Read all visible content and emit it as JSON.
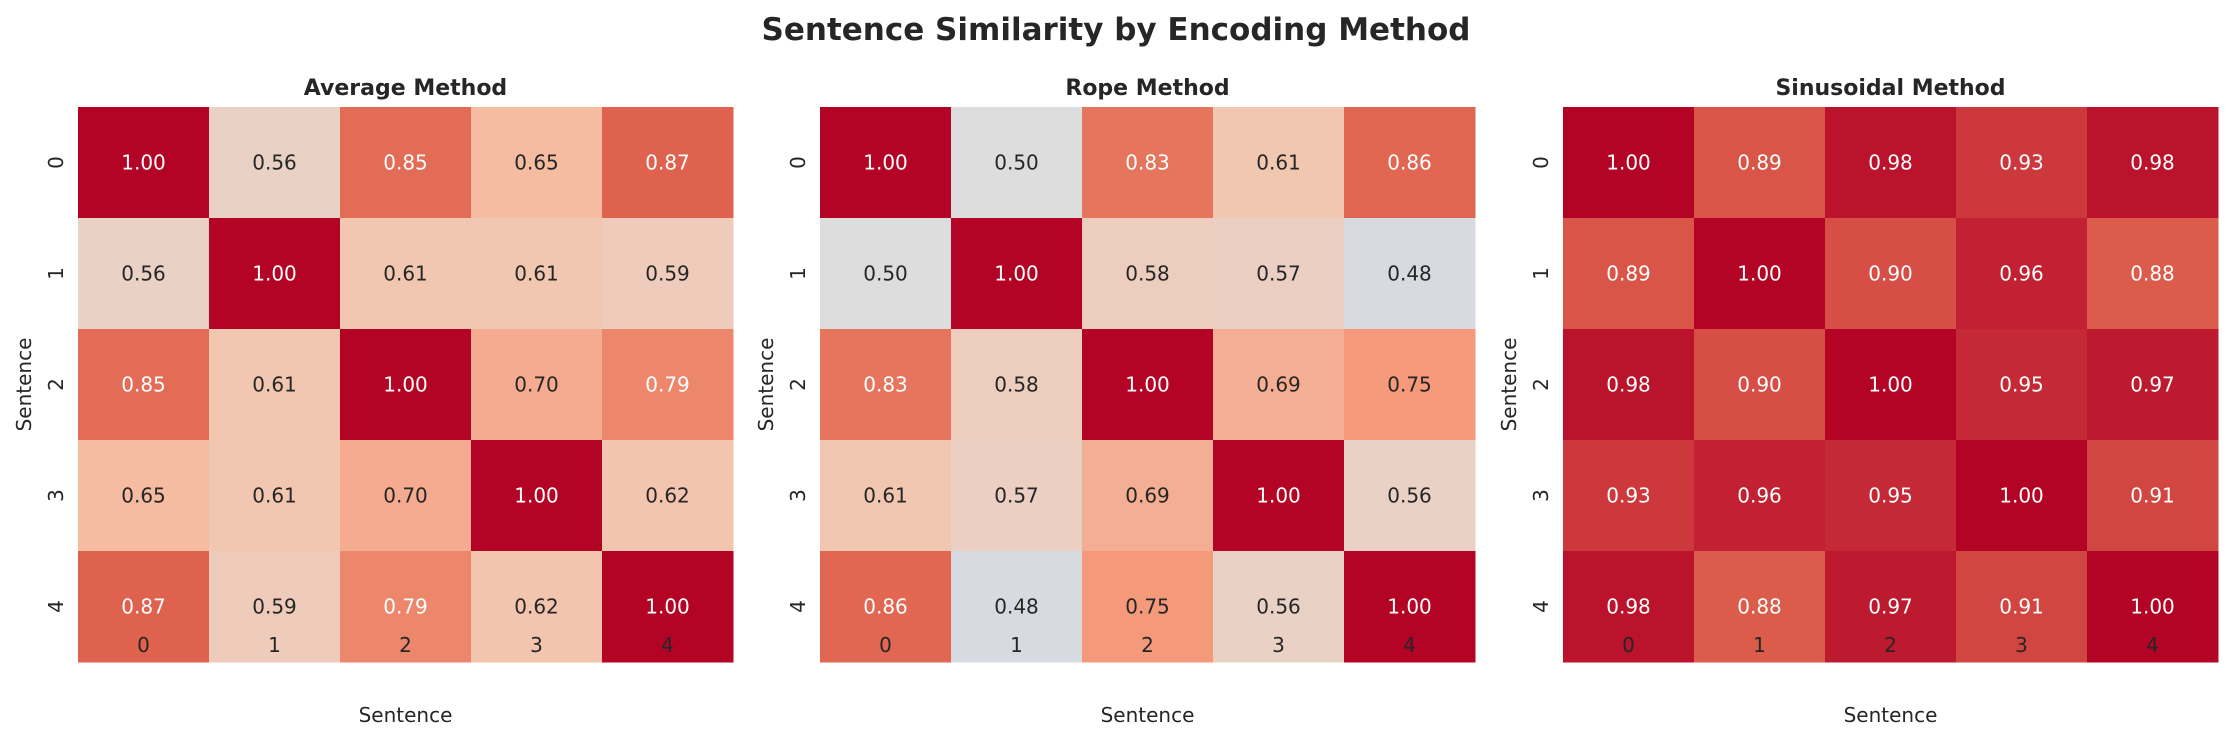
{
  "chart_data": {
    "title": "Sentence Similarity by Encoding Method",
    "colormap": "coolwarm",
    "vlim": [
      0,
      1
    ],
    "colorbar": false,
    "panels": [
      {
        "type": "heatmap",
        "title": "Average Method",
        "xlabel": "Sentence",
        "ylabel": "Sentence",
        "x_ticks": [
          "0",
          "1",
          "2",
          "3",
          "4"
        ],
        "y_ticks": [
          "0",
          "1",
          "2",
          "3",
          "4"
        ],
        "values": [
          [
            1.0,
            0.56,
            0.85,
            0.65,
            0.87
          ],
          [
            0.56,
            1.0,
            0.61,
            0.61,
            0.59
          ],
          [
            0.85,
            0.61,
            1.0,
            0.7,
            0.79
          ],
          [
            0.65,
            0.61,
            0.7,
            1.0,
            0.62
          ],
          [
            0.87,
            0.59,
            0.79,
            0.62,
            1.0
          ]
        ]
      },
      {
        "type": "heatmap",
        "title": "Rope Method",
        "xlabel": "Sentence",
        "ylabel": "Sentence",
        "x_ticks": [
          "0",
          "1",
          "2",
          "3",
          "4"
        ],
        "y_ticks": [
          "0",
          "1",
          "2",
          "3",
          "4"
        ],
        "values": [
          [
            1.0,
            0.5,
            0.83,
            0.61,
            0.86
          ],
          [
            0.5,
            1.0,
            0.58,
            0.57,
            0.48
          ],
          [
            0.83,
            0.58,
            1.0,
            0.69,
            0.75
          ],
          [
            0.61,
            0.57,
            0.69,
            1.0,
            0.56
          ],
          [
            0.86,
            0.48,
            0.75,
            0.56,
            1.0
          ]
        ]
      },
      {
        "type": "heatmap",
        "title": "Sinusoidal Method",
        "xlabel": "Sentence",
        "ylabel": "Sentence",
        "x_ticks": [
          "0",
          "1",
          "2",
          "3",
          "4"
        ],
        "y_ticks": [
          "0",
          "1",
          "2",
          "3",
          "4"
        ],
        "values": [
          [
            1.0,
            0.89,
            0.98,
            0.93,
            0.98
          ],
          [
            0.89,
            1.0,
            0.9,
            0.96,
            0.88
          ],
          [
            0.98,
            0.9,
            1.0,
            0.95,
            0.97
          ],
          [
            0.93,
            0.96,
            0.95,
            1.0,
            0.91
          ],
          [
            0.98,
            0.88,
            0.97,
            0.91,
            1.0
          ]
        ]
      }
    ]
  }
}
